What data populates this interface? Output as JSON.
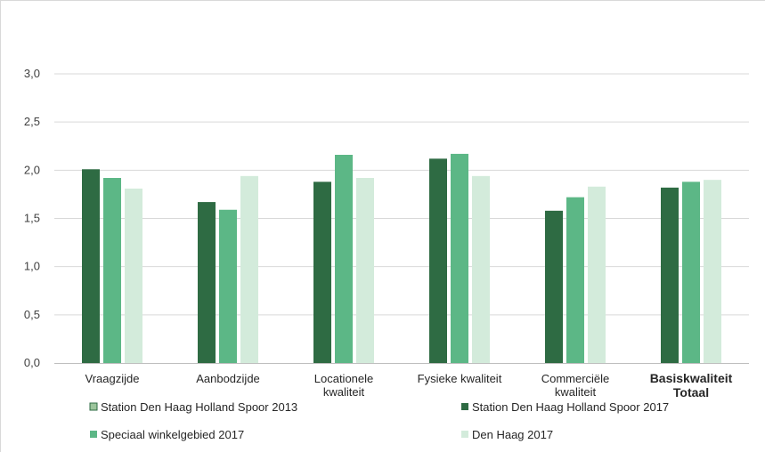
{
  "chart_data": {
    "type": "bar",
    "title": "",
    "xlabel": "",
    "ylabel": "",
    "ylim": [
      0,
      3.0
    ],
    "yticks": [
      "0,0",
      "0,5",
      "1,0",
      "1,5",
      "2,0",
      "2,5",
      "3,0"
    ],
    "ytick_values": [
      0,
      0.5,
      1.0,
      1.5,
      2.0,
      2.5,
      3.0
    ],
    "categories": [
      {
        "lines": [
          "Vraagzijde"
        ],
        "bold": false
      },
      {
        "lines": [
          "Aanbodzijde"
        ],
        "bold": false
      },
      {
        "lines": [
          "Locationele",
          "kwaliteit"
        ],
        "bold": false
      },
      {
        "lines": [
          "Fysieke kwaliteit"
        ],
        "bold": false
      },
      {
        "lines": [
          "Commerciële",
          "kwaliteit"
        ],
        "bold": false
      },
      {
        "lines": [
          "Basiskwaliteit",
          "Totaal"
        ],
        "bold": true
      }
    ],
    "grid": true,
    "legend_position": "bottom",
    "series": [
      {
        "name": "Station Den Haag Holland Spoor 2013",
        "color": "#9cc59c",
        "values": [
          0,
          0,
          0,
          0,
          0,
          0
        ]
      },
      {
        "name": "Station Den Haag Holland Spoor 2017",
        "color": "#2e6b43",
        "values": [
          2.01,
          1.67,
          1.88,
          2.12,
          1.58,
          1.82
        ]
      },
      {
        "name": "Speciaal winkelgebied 2017",
        "color": "#5cb786",
        "values": [
          1.92,
          1.59,
          2.16,
          2.17,
          1.72,
          1.88
        ]
      },
      {
        "name": "Den Haag 2017",
        "color": "#d3ebdb",
        "values": [
          1.81,
          1.94,
          1.92,
          1.94,
          1.83,
          1.9
        ]
      }
    ]
  }
}
